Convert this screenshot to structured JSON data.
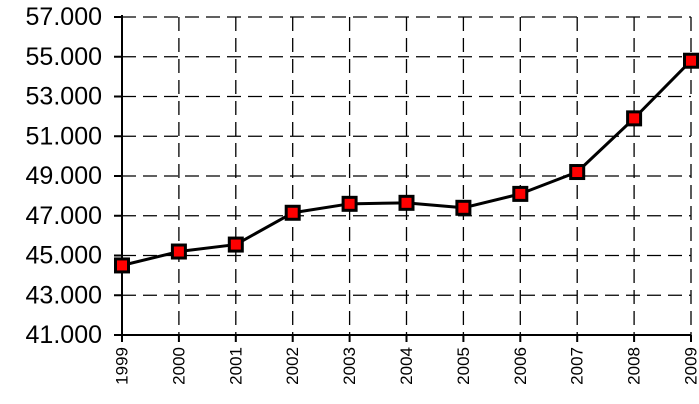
{
  "chart_data": {
    "type": "line",
    "title": "",
    "xlabel": "",
    "ylabel": "",
    "categories": [
      "1999",
      "2000",
      "2001",
      "2002",
      "2003",
      "2004",
      "2005",
      "2006",
      "2007",
      "2008",
      "2009"
    ],
    "series": [
      {
        "values": [
          44500,
          45200,
          45550,
          47150,
          47600,
          47650,
          47400,
          48100,
          49200,
          51900,
          54800
        ]
      }
    ],
    "ylim": [
      41000,
      57000
    ],
    "yticks": [
      41000,
      43000,
      45000,
      47000,
      49000,
      51000,
      53000,
      55000,
      57000
    ],
    "ytick_labels": [
      "41.000",
      "43.000",
      "45.000",
      "47.000",
      "49.000",
      "51.000",
      "53.000",
      "55.000",
      "57.000"
    ],
    "grid": true,
    "grid_style": "dashed",
    "line_color": "#000000",
    "marker": "square",
    "marker_fill": "#ff0000",
    "marker_edge": "#000000"
  }
}
